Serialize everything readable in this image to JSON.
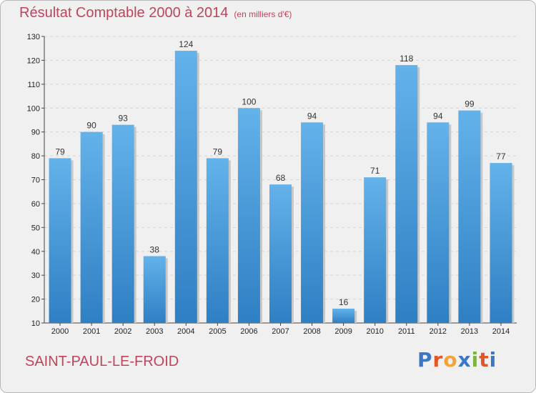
{
  "header": {
    "title": "Résultat Comptable 2000 à 2014",
    "subtitle": "(en milliers d'€)"
  },
  "footer": {
    "place": "SAINT-PAUL-LE-FROID",
    "brand": [
      "P",
      "r",
      "o",
      "x",
      "i",
      "t",
      "i"
    ]
  },
  "colors": {
    "bar_light": "#63b2ea",
    "bar_dark": "#2f7fc4",
    "title": "#c0445a"
  },
  "chart_data": {
    "type": "bar",
    "title": "Résultat Comptable 2000 à 2014",
    "ylabel": "en milliers d'€",
    "xlabel": "",
    "categories": [
      "2000",
      "2001",
      "2002",
      "2003",
      "2004",
      "2005",
      "2006",
      "2007",
      "2008",
      "2009",
      "2010",
      "2011",
      "2012",
      "2013",
      "2014"
    ],
    "values": [
      79,
      90,
      93,
      38,
      124,
      79,
      100,
      68,
      94,
      16,
      71,
      118,
      94,
      99,
      77
    ],
    "ylim": [
      10,
      130
    ],
    "yticks": [
      10,
      20,
      30,
      40,
      50,
      60,
      70,
      80,
      90,
      100,
      110,
      120,
      130
    ],
    "grid": true
  }
}
